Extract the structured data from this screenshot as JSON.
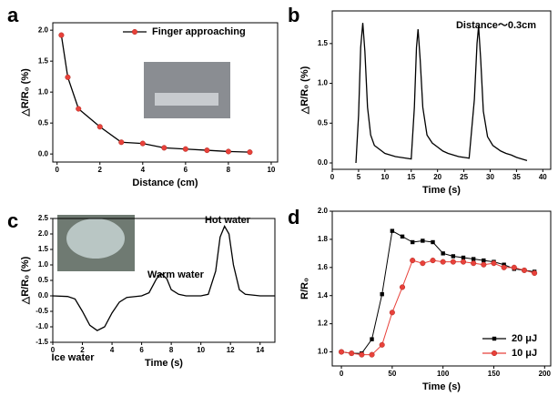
{
  "chart_data": [
    {
      "type": "line",
      "panel_label": "a",
      "xlabel": "Distance (cm)",
      "ylabel": "△R/R₀ (%)",
      "x": [
        0.2,
        0.5,
        1,
        2,
        3,
        4,
        5,
        6,
        7,
        8,
        9
      ],
      "series": [
        {
          "name": "Finger approaching",
          "color": "#000000",
          "marker": "circle",
          "marker_color": "#e8413a",
          "values": [
            1.92,
            1.24,
            0.73,
            0.44,
            0.19,
            0.17,
            0.1,
            0.08,
            0.06,
            0.04,
            0.03
          ]
        }
      ],
      "xlim": [
        -0.2,
        10.3
      ],
      "xticks": [
        0,
        2,
        4,
        6,
        8,
        10
      ],
      "ylim": [
        -0.13,
        2.12
      ],
      "yticks": [
        {
          "value": 0,
          "label": "0.0"
        },
        {
          "value": 0.5,
          "label": "0.5"
        },
        {
          "value": 1,
          "label": "1.0"
        },
        {
          "value": 1.5,
          "label": "1.5"
        },
        {
          "value": 2,
          "label": "2.0"
        }
      ],
      "legend": "top-right"
    },
    {
      "type": "line",
      "panel_label": "b",
      "xlabel": "Time (s)",
      "ylabel": "△R/R₀ (%)",
      "annotations": [
        "Distance～0.3cm"
      ],
      "x": [
        4.5,
        5,
        5.4,
        5.8,
        6.2,
        6.7,
        7.3,
        8,
        9,
        10,
        11,
        12,
        13,
        14,
        15,
        15.6,
        16,
        16.3,
        16.7,
        17.2,
        18,
        19,
        20,
        21,
        22,
        23,
        24,
        25,
        26,
        27,
        27.5,
        27.8,
        28.2,
        28.7,
        29.5,
        30.5,
        32,
        33,
        34,
        35,
        36,
        37
      ],
      "series": [
        {
          "color": "#000000",
          "values": [
            0.0,
            0.6,
            1.45,
            1.76,
            1.4,
            0.7,
            0.35,
            0.22,
            0.17,
            0.12,
            0.1,
            0.08,
            0.07,
            0.06,
            0.05,
            0.7,
            1.45,
            1.68,
            1.3,
            0.7,
            0.35,
            0.25,
            0.2,
            0.15,
            0.12,
            0.1,
            0.08,
            0.07,
            0.06,
            0.8,
            1.5,
            1.72,
            1.3,
            0.65,
            0.33,
            0.22,
            0.15,
            0.12,
            0.1,
            0.07,
            0.05,
            0.03
          ]
        }
      ],
      "xlim": [
        0,
        41.5
      ],
      "xticks": [
        0,
        5,
        10,
        15,
        20,
        25,
        30,
        35,
        40
      ],
      "ylim": [
        -0.08,
        1.91
      ],
      "yticks": [
        {
          "value": 0,
          "label": "0.0"
        },
        {
          "value": 0.5,
          "label": "0.5"
        },
        {
          "value": 1,
          "label": "1.0"
        },
        {
          "value": 1.5,
          "label": "1.5"
        }
      ]
    },
    {
      "type": "line",
      "panel_label": "c",
      "xlabel": "Time (s)",
      "ylabel": "△R/R₀ (%)",
      "annotations": [
        "Ice water",
        "Warm water",
        "Hot water"
      ],
      "x": [
        0,
        1,
        1.5,
        2,
        2.5,
        3,
        3.5,
        4,
        4.5,
        5,
        6,
        6.5,
        7,
        7.3,
        7.7,
        8,
        8.5,
        9,
        10,
        10.5,
        11,
        11.3,
        11.6,
        11.9,
        12.2,
        12.6,
        13,
        14,
        15
      ],
      "series": [
        {
          "color": "#000000",
          "values": [
            0,
            -0.02,
            -0.1,
            -0.5,
            -0.95,
            -1.12,
            -1.0,
            -0.55,
            -0.2,
            -0.05,
            0,
            0.1,
            0.55,
            0.73,
            0.55,
            0.2,
            0.05,
            0,
            0,
            0.05,
            0.8,
            1.9,
            2.25,
            2.0,
            1.0,
            0.2,
            0.05,
            0,
            0
          ]
        }
      ],
      "xlim": [
        0,
        15
      ],
      "xticks": [
        0,
        2,
        4,
        6,
        8,
        10,
        12,
        14
      ],
      "ylim": [
        -1.5,
        2.5
      ],
      "yticks": [
        {
          "value": -1.5,
          "label": "-1.5"
        },
        {
          "value": -1,
          "label": "-1.0"
        },
        {
          "value": -0.5,
          "label": "-0.5"
        },
        {
          "value": 0,
          "label": "0.0"
        },
        {
          "value": 0.5,
          "label": "0.5"
        },
        {
          "value": 1,
          "label": "1.0"
        },
        {
          "value": 1.5,
          "label": "1.5"
        },
        {
          "value": 2,
          "label": "2.0"
        },
        {
          "value": 2.5,
          "label": "2.5"
        }
      ]
    },
    {
      "type": "line",
      "panel_label": "d",
      "xlabel": "Time (s)",
      "ylabel": "R/R₀",
      "x": [
        0,
        10,
        20,
        30,
        40,
        50,
        60,
        70,
        80,
        90,
        100,
        110,
        120,
        130,
        140,
        150,
        160,
        170,
        180,
        190
      ],
      "series": [
        {
          "name": "20 μJ",
          "color": "#000000",
          "marker": "square",
          "marker_color": "#000000",
          "values": [
            1.0,
            0.99,
            0.99,
            1.09,
            1.41,
            1.86,
            1.82,
            1.78,
            1.79,
            1.78,
            1.7,
            1.68,
            1.67,
            1.66,
            1.65,
            1.64,
            1.62,
            1.59,
            1.58,
            1.57
          ]
        },
        {
          "name": "10 μJ",
          "color": "#e8413a",
          "marker": "circle",
          "marker_color": "#e8413a",
          "values": [
            1.0,
            0.99,
            0.98,
            0.98,
            1.05,
            1.28,
            1.46,
            1.65,
            1.63,
            1.65,
            1.64,
            1.64,
            1.64,
            1.63,
            1.62,
            1.63,
            1.6,
            1.6,
            1.58,
            1.56
          ]
        }
      ],
      "xlim": [
        -9,
        206
      ],
      "xticks": [
        0,
        50,
        100,
        150,
        200
      ],
      "ylim": [
        0.9,
        2.0
      ],
      "yticks": [
        {
          "value": 1,
          "label": "1.0"
        },
        {
          "value": 1.2,
          "label": "1.2"
        },
        {
          "value": 1.4,
          "label": "1.4"
        },
        {
          "value": 1.6,
          "label": "1.6"
        },
        {
          "value": 1.8,
          "label": "1.8"
        },
        {
          "value": 2,
          "label": "2.0"
        }
      ],
      "legend": "bottom-right"
    }
  ]
}
